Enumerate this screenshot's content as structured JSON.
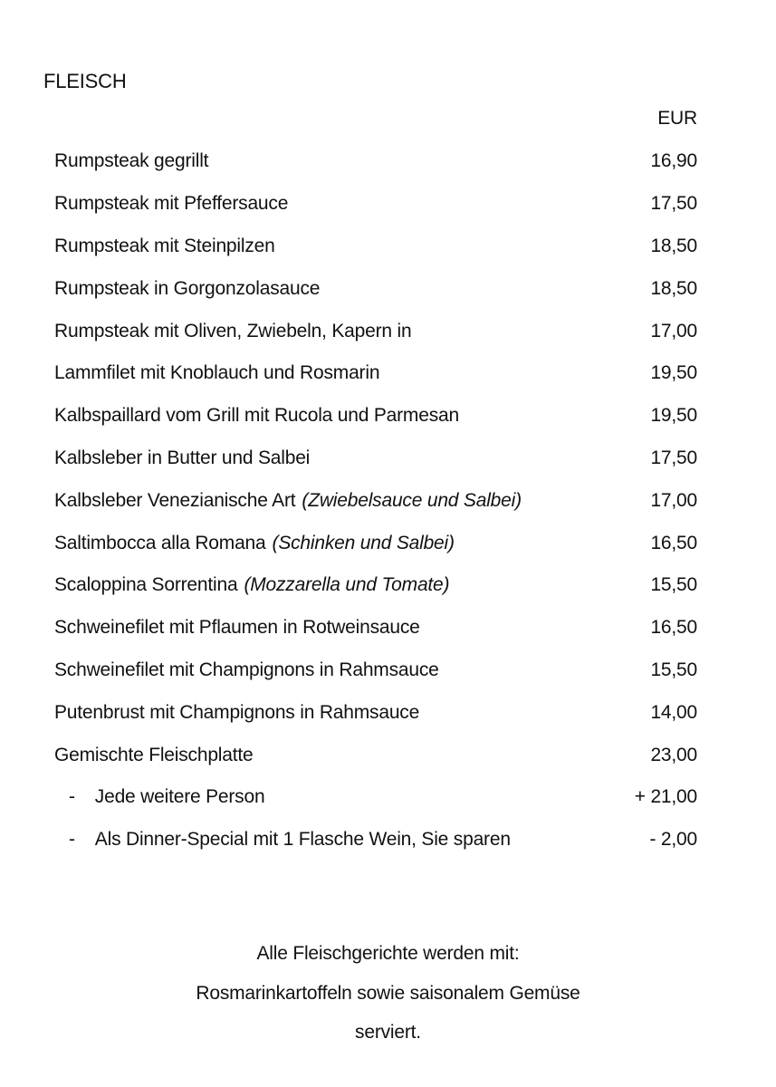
{
  "page": {
    "background_color": "#ffffff",
    "text_color": "#111111"
  },
  "menu": {
    "section_title": "FLEISCH",
    "currency_header": "EUR",
    "items": [
      {
        "name": "Rumpsteak gegrillt",
        "price": "16,90"
      },
      {
        "name": "Rumpsteak mit Pfeffersauce",
        "price": "17,50"
      },
      {
        "name": "Rumpsteak mit Steinpilzen",
        "price": "18,50"
      },
      {
        "name": "Rumpsteak in Gorgonzolasauce",
        "price": "18,50"
      },
      {
        "name": "Rumpsteak mit Oliven, Zwiebeln, Kapern in",
        "price": "17,00"
      },
      {
        "name": "Lammfilet mit Knoblauch und Rosmarin",
        "price": "19,50"
      },
      {
        "name": "Kalbspaillard vom Grill mit Rucola und Parmesan",
        "price": "19,50"
      },
      {
        "name": "Kalbsleber in Butter und Salbei",
        "price": "17,50"
      },
      {
        "name": "Kalbsleber Venezianische Art",
        "note": "(Zwiebelsauce und Salbei)",
        "price": "17,00"
      },
      {
        "name": "Saltimbocca alla Romana",
        "note": "(Schinken und Salbei)",
        "price": "16,50"
      },
      {
        "name": "Scaloppina Sorrentina",
        "note": "(Mozzarella und Tomate)",
        "price": "15,50"
      },
      {
        "name": "Schweinefilet mit Pflaumen in Rotweinsauce",
        "price": "16,50"
      },
      {
        "name": "Schweinefilet mit Champignons in Rahmsauce",
        "price": "15,50"
      },
      {
        "name": "Putenbrust mit Champignons in Rahmsauce",
        "price": "14,00"
      },
      {
        "name": "Gemischte Fleischplatte",
        "price": "23,00"
      },
      {
        "dash": "-",
        "name": "Jede weitere Person",
        "price": "+ 21,00"
      },
      {
        "dash": "-",
        "name": "Als Dinner-Special mit 1 Flasche Wein, Sie sparen",
        "price": "- 2,00"
      }
    ],
    "footer": {
      "line1": "Alle Fleischgerichte werden mit:",
      "line2": "Rosmarinkartoffeln sowie saisonalem Gemüse",
      "line3": "serviert."
    }
  }
}
